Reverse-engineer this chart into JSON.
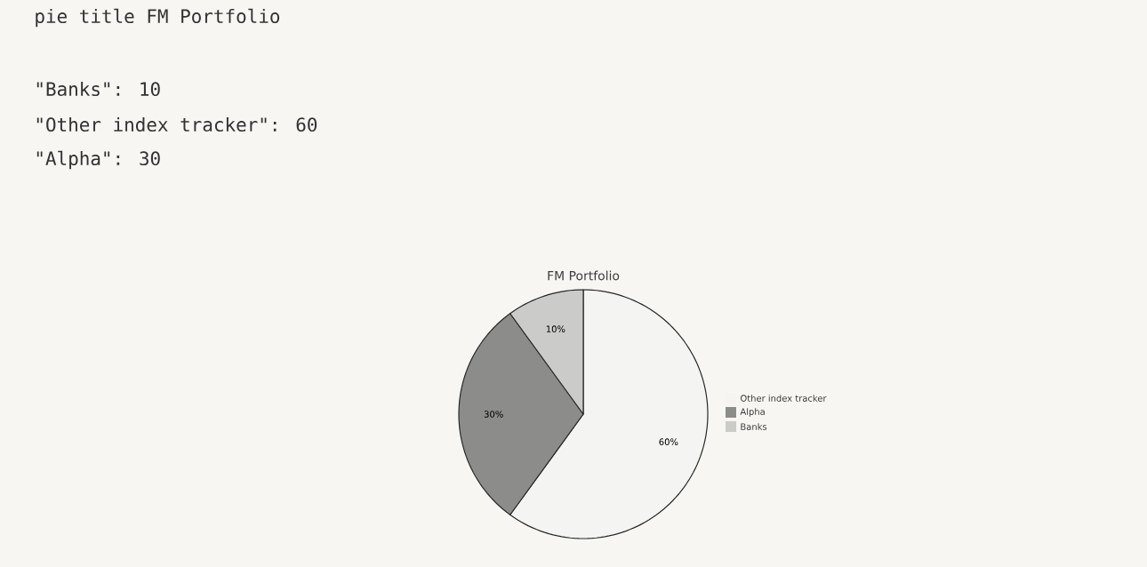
{
  "chart_data": {
    "type": "pie",
    "title": "FM Portfolio",
    "categories": [
      "Other index tracker",
      "Alpha",
      "Banks"
    ],
    "values": [
      60,
      30,
      10
    ],
    "colors": [
      "#f4f4f2",
      "#8c8c8a",
      "#cbcbc9"
    ],
    "value_labels": [
      "60%",
      "30%",
      "10%"
    ],
    "legend": "right",
    "annotations": [
      "pie title FM Portfolio",
      "\"Banks\": 10",
      "\"Other index tracker\": 60",
      "\"Alpha\": 30"
    ]
  }
}
